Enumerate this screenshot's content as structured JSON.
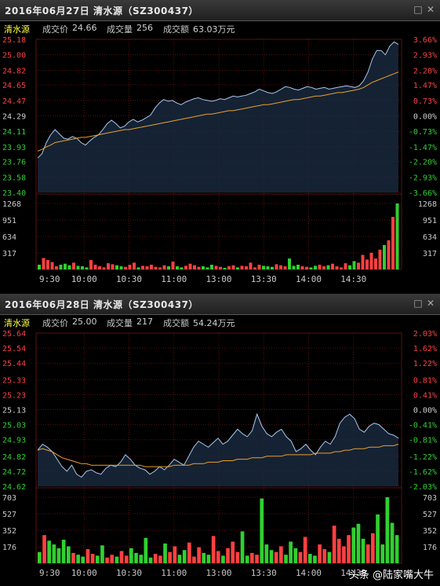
{
  "panels": [
    {
      "title": "2016年06月27日 清水源（SZ300437）",
      "stock_name": "清水源",
      "price_label": "成交价",
      "price_value": "24.66",
      "volume_label": "成交量",
      "volume_value": "256",
      "amount_label": "成交额",
      "amount_value": "63.03万元"
    },
    {
      "title": "2016年06月28日 清水源（SZ300437）",
      "stock_name": "清水源",
      "price_label": "成交价",
      "price_value": "25.00",
      "volume_label": "成交量",
      "volume_value": "217",
      "amount_label": "成交额",
      "amount_value": "54.24万元"
    }
  ],
  "watermark": "头条 @陆家嘴大牛",
  "colors": {
    "up": "#ff4040",
    "down": "#30d030",
    "flat": "#d0d0d0",
    "price_line": "#a8c8f0",
    "avg_line": "#e8a030",
    "area": "#1a2a40",
    "grid": "#5a1010"
  },
  "chart_data": [
    {
      "type": "line",
      "title": "2016年06月27日 清水源（SZ300437）",
      "price_ticks": [
        "25.18",
        "25.00",
        "24.82",
        "24.65",
        "24.47",
        "24.29",
        "24.11",
        "23.93",
        "23.76",
        "23.58",
        "23.40"
      ],
      "pct_ticks": [
        "3.66%",
        "2.93%",
        "2.20%",
        "1.47%",
        "0.73%",
        "0.00%",
        "-0.73%",
        "-1.47%",
        "-2.20%",
        "-2.93%",
        "-3.66%"
      ],
      "ylim": [
        23.4,
        25.18
      ],
      "prev_close": 24.29,
      "volume_ticks": [
        "1268",
        "951",
        "634",
        "317"
      ],
      "volume_ylim": [
        0,
        1268
      ],
      "time_ticks": [
        "9:30",
        "10:00",
        "10:30",
        "11:00",
        "13:00",
        "13:30",
        "14:00",
        "14:30"
      ],
      "price_points": [
        23.8,
        23.85,
        23.98,
        24.07,
        24.13,
        24.08,
        24.03,
        24.02,
        24.05,
        24.03,
        23.98,
        23.95,
        24.0,
        24.04,
        24.07,
        24.13,
        24.2,
        24.24,
        24.2,
        24.15,
        24.17,
        24.22,
        24.25,
        24.22,
        24.24,
        24.27,
        24.3,
        24.38,
        24.44,
        24.48,
        24.46,
        24.47,
        24.44,
        24.42,
        24.45,
        24.47,
        24.49,
        24.5,
        24.48,
        24.47,
        24.46,
        24.47,
        24.49,
        24.48,
        24.5,
        24.52,
        24.51,
        24.52,
        24.53,
        24.55,
        24.57,
        24.6,
        24.58,
        24.56,
        24.55,
        24.57,
        24.6,
        24.63,
        24.62,
        24.6,
        24.59,
        24.61,
        24.63,
        24.62,
        24.6,
        24.61,
        24.62,
        24.6,
        24.61,
        24.62,
        24.63,
        24.64,
        24.63,
        24.62,
        24.64,
        24.7,
        24.8,
        24.95,
        25.05,
        25.05,
        25.0,
        25.1,
        25.15,
        25.12
      ],
      "avg_points": [
        23.88,
        23.9,
        23.93,
        23.95,
        23.98,
        23.99,
        24.0,
        24.01,
        24.02,
        24.03,
        24.04,
        24.04,
        24.05,
        24.06,
        24.07,
        24.08,
        24.09,
        24.1,
        24.11,
        24.12,
        24.13,
        24.13,
        24.14,
        24.15,
        24.16,
        24.17,
        24.18,
        24.19,
        24.2,
        24.21,
        24.22,
        24.23,
        24.24,
        24.25,
        24.26,
        24.27,
        24.28,
        24.29,
        24.3,
        24.31,
        24.31,
        24.32,
        24.33,
        24.34,
        24.35,
        24.35,
        24.36,
        24.37,
        24.38,
        24.39,
        24.4,
        24.41,
        24.42,
        24.42,
        24.43,
        24.44,
        24.45,
        24.46,
        24.47,
        24.48,
        24.48,
        24.49,
        24.5,
        24.51,
        24.52,
        24.52,
        24.53,
        24.54,
        24.55,
        24.56,
        24.56,
        24.57,
        24.58,
        24.59,
        24.6,
        24.62,
        24.65,
        24.68,
        24.7,
        24.72,
        24.74,
        24.76,
        24.78,
        24.8
      ],
      "volumes": [
        90,
        220,
        180,
        140,
        60,
        90,
        110,
        80,
        130,
        70,
        60,
        40,
        180,
        90,
        60,
        40,
        120,
        100,
        80,
        60,
        50,
        90,
        130,
        40,
        70,
        60,
        90,
        50,
        40,
        80,
        60,
        150,
        60,
        40,
        70,
        110,
        80,
        50,
        60,
        40,
        90,
        70,
        50,
        30,
        60,
        80,
        40,
        70,
        60,
        130,
        40,
        90,
        70,
        60,
        50,
        100,
        80,
        60,
        210,
        70,
        90,
        60,
        50,
        40,
        70,
        90,
        60,
        80,
        110,
        60,
        40,
        120,
        80,
        160,
        130,
        280,
        190,
        320,
        210,
        380,
        470,
        560,
        1010,
        1268
      ]
    },
    {
      "type": "line",
      "title": "2016年06月28日 清水源（SZ300437）",
      "price_ticks": [
        "25.64",
        "25.54",
        "25.44",
        "25.33",
        "25.23",
        "25.13",
        "25.03",
        "24.93",
        "24.82",
        "24.72",
        "24.62"
      ],
      "pct_ticks": [
        "2.03%",
        "1.62%",
        "1.22%",
        "0.81%",
        "0.41%",
        "0.00%",
        "-0.41%",
        "-0.81%",
        "-1.22%",
        "-1.62%",
        "-2.03%"
      ],
      "ylim": [
        24.62,
        25.64
      ],
      "prev_close": 25.13,
      "volume_ticks": [
        "703",
        "527",
        "352",
        "176"
      ],
      "volume_ylim": [
        0,
        703
      ],
      "time_ticks": [
        "9:30",
        "10:00",
        "10:30",
        "11:00",
        "13:00",
        "13:30",
        "14:00",
        "14:30"
      ],
      "price_points": [
        24.86,
        24.9,
        24.88,
        24.85,
        24.8,
        24.75,
        24.72,
        24.76,
        24.7,
        24.68,
        24.72,
        24.73,
        24.71,
        24.7,
        24.74,
        24.76,
        24.75,
        24.78,
        24.83,
        24.8,
        24.76,
        24.74,
        24.73,
        24.7,
        24.72,
        24.75,
        24.73,
        24.76,
        24.8,
        24.78,
        24.76,
        24.82,
        24.88,
        24.92,
        24.9,
        24.88,
        24.91,
        24.94,
        24.9,
        24.92,
        24.96,
        25.0,
        24.97,
        24.95,
        24.99,
        25.1,
        25.02,
        24.97,
        24.95,
        24.98,
        25.0,
        24.95,
        24.92,
        24.85,
        24.87,
        24.9,
        24.86,
        24.83,
        24.88,
        24.92,
        24.9,
        24.95,
        25.04,
        25.08,
        25.1,
        25.07,
        25.0,
        24.98,
        25.02,
        25.04,
        25.03,
        25.0,
        24.97,
        24.96,
        24.94
      ],
      "avg_points": [
        24.86,
        24.87,
        24.86,
        24.85,
        24.83,
        24.81,
        24.8,
        24.79,
        24.78,
        24.77,
        24.77,
        24.76,
        24.76,
        24.76,
        24.76,
        24.76,
        24.76,
        24.76,
        24.76,
        24.76,
        24.76,
        24.76,
        24.75,
        24.75,
        24.75,
        24.75,
        24.75,
        24.75,
        24.76,
        24.76,
        24.76,
        24.76,
        24.77,
        24.77,
        24.77,
        24.78,
        24.78,
        24.78,
        24.79,
        24.79,
        24.79,
        24.8,
        24.8,
        24.8,
        24.81,
        24.81,
        24.81,
        24.82,
        24.82,
        24.82,
        24.82,
        24.83,
        24.83,
        24.83,
        24.83,
        24.83,
        24.83,
        24.84,
        24.84,
        24.84,
        24.84,
        24.85,
        24.85,
        24.86,
        24.86,
        24.87,
        24.87,
        24.87,
        24.88,
        24.88,
        24.88,
        24.89,
        24.89,
        24.89,
        24.9
      ],
      "volumes": [
        120,
        300,
        240,
        200,
        160,
        250,
        180,
        110,
        90,
        70,
        150,
        100,
        80,
        190,
        60,
        90,
        70,
        130,
        80,
        160,
        110,
        90,
        270,
        60,
        100,
        80,
        210,
        120,
        180,
        90,
        140,
        220,
        70,
        170,
        110,
        90,
        290,
        130,
        80,
        160,
        230,
        120,
        340,
        80,
        110,
        90,
        690,
        200,
        140,
        120,
        180,
        90,
        230,
        160,
        120,
        280,
        100,
        80,
        200,
        150,
        120,
        400,
        260,
        180,
        300,
        380,
        420,
        260,
        200,
        320,
        520,
        200,
        703,
        430,
        300
      ]
    }
  ]
}
